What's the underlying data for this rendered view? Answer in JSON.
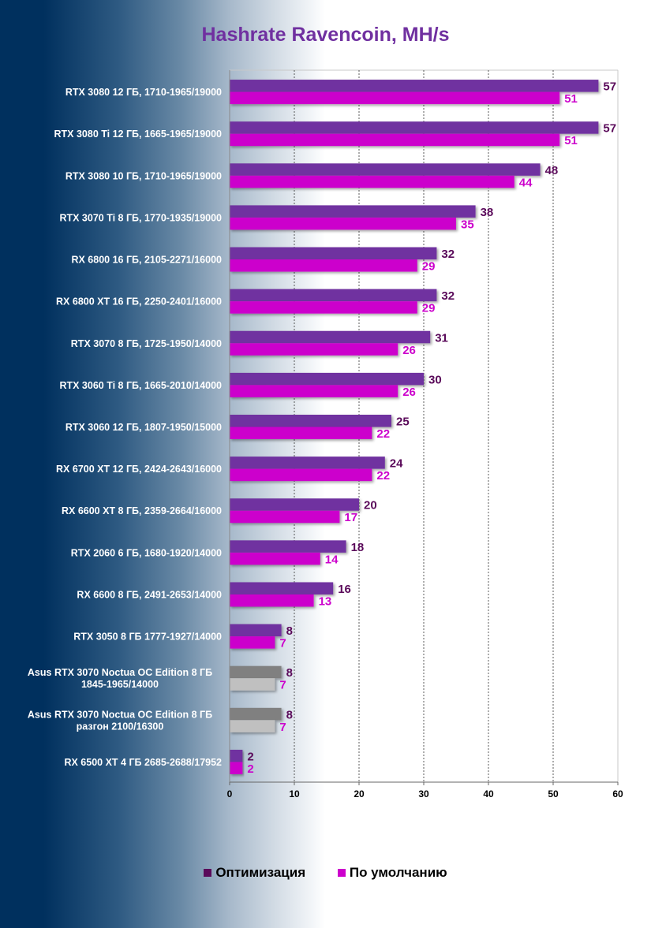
{
  "chart_data": {
    "type": "bar",
    "orientation": "horizontal",
    "title": "Hashrate Ravencoin, MH/s",
    "xlabel": "",
    "ylabel": "",
    "xlim": [
      0,
      60
    ],
    "x_ticks": [
      0,
      10,
      20,
      30,
      40,
      50,
      60
    ],
    "grid": "vertical dashed",
    "legend_position": "bottom",
    "categories": [
      [
        "RTX 3080 12 ГБ, 1710-1965/19000"
      ],
      [
        "RTX 3080 Ti 12 ГБ, 1665-1965/19000"
      ],
      [
        "RTX 3080 10 ГБ, 1710-1965/19000"
      ],
      [
        "RTX 3070 Ti 8 ГБ, 1770-1935/19000"
      ],
      [
        "RX 6800 16 ГБ, 2105-2271/16000"
      ],
      [
        "RX 6800 XT 16 ГБ, 2250-2401/16000"
      ],
      [
        "RTX 3070 8 ГБ, 1725-1950/14000"
      ],
      [
        "RTX 3060 Ti 8 ГБ, 1665-2010/14000"
      ],
      [
        "RTX 3060 12 ГБ, 1807-1950/15000"
      ],
      [
        "RX 6700 XT 12 ГБ, 2424-2643/16000"
      ],
      [
        "RX 6600 XT 8 ГБ, 2359-2664/16000"
      ],
      [
        "RTX 2060 6 ГБ, 1680-1920/14000"
      ],
      [
        "RX 6600 8 ГБ, 2491-2653/14000"
      ],
      [
        "RTX 3050 8 ГБ 1777-1927/14000"
      ],
      [
        "Asus RTX 3070 Noctua OC Edition 8 ГБ",
        "1845-1965/14000"
      ],
      [
        "Asus RTX 3070 Noctua OC Edition 8 ГБ",
        "разгон 2100/16300"
      ],
      [
        "RX 6500 XT 4 ГБ 2685-2688/17952"
      ]
    ],
    "highlighted_categories": [
      14,
      15
    ],
    "series": [
      {
        "name": "Оптимизация",
        "color": "#7030a0",
        "highlight_color": "#808080",
        "label_color": "#5a0a5a",
        "values": [
          57,
          57,
          48,
          38,
          32,
          32,
          31,
          30,
          25,
          24,
          20,
          18,
          16,
          8,
          8,
          8,
          2
        ]
      },
      {
        "name": "По умолчанию",
        "color": "#cc00cc",
        "highlight_color": "#c0c0c0",
        "label_color": "#cc00cc",
        "values": [
          51,
          51,
          44,
          35,
          29,
          29,
          26,
          26,
          22,
          22,
          17,
          14,
          13,
          7,
          7,
          7,
          2
        ]
      }
    ]
  },
  "legend": {
    "items": [
      {
        "label": "Оптимизация",
        "color": "#5a0a5a"
      },
      {
        "label": "По умолчанию",
        "color": "#cc00cc"
      }
    ]
  }
}
